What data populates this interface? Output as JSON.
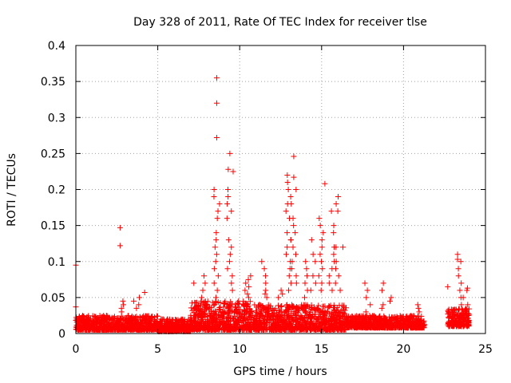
{
  "chart_data": {
    "type": "scatter",
    "title": "Day 328 of 2011, Rate Of TEC Index for receiver tlse",
    "xlabel": "GPS time / hours",
    "ylabel": "ROTI / TECUs",
    "xlim": [
      0,
      25
    ],
    "ylim": [
      0,
      0.4
    ],
    "x_ticks": [
      0,
      5,
      10,
      15,
      20,
      25
    ],
    "y_ticks": [
      0,
      0.05,
      0.1,
      0.15,
      0.2,
      0.25,
      0.3,
      0.35,
      0.4
    ],
    "grid": true,
    "marker": "plus",
    "marker_color": "#ff0000",
    "baseline_bands": [
      {
        "x_start": 0,
        "x_end": 5,
        "y_low": 0.005,
        "y_high": 0.025
      },
      {
        "x_start": 5,
        "x_end": 7,
        "y_low": 0.003,
        "y_high": 0.02
      },
      {
        "x_start": 7,
        "x_end": 11,
        "y_low": 0.005,
        "y_high": 0.045
      },
      {
        "x_start": 11,
        "x_end": 16.5,
        "y_low": 0.005,
        "y_high": 0.04
      },
      {
        "x_start": 16.5,
        "x_end": 21.3,
        "y_low": 0.008,
        "y_high": 0.025
      },
      {
        "x_start": 22.7,
        "x_end": 24,
        "y_low": 0.01,
        "y_high": 0.035
      }
    ],
    "spikes": [
      {
        "x": 8.6,
        "y_values": [
          0.2,
          0.19,
          0.18,
          0.17,
          0.16,
          0.14,
          0.13,
          0.12,
          0.11,
          0.1,
          0.09,
          0.08,
          0.07,
          0.06,
          0.05
        ]
      },
      {
        "x": 9.4,
        "y_values": [
          0.2,
          0.19,
          0.18,
          0.17,
          0.16,
          0.13,
          0.12,
          0.11,
          0.1,
          0.09,
          0.08,
          0.07,
          0.06
        ]
      },
      {
        "x": 13.0,
        "y_values": [
          0.22,
          0.21,
          0.2,
          0.19,
          0.18,
          0.17,
          0.16,
          0.14,
          0.13,
          0.12,
          0.11,
          0.1,
          0.09,
          0.08,
          0.07,
          0.06
        ]
      },
      {
        "x": 13.3,
        "y_values": [
          0.2,
          0.18,
          0.16,
          0.15,
          0.14,
          0.13,
          0.12,
          0.11,
          0.1,
          0.09,
          0.08,
          0.07
        ]
      },
      {
        "x": 15.0,
        "y_values": [
          0.16,
          0.15,
          0.14,
          0.13,
          0.12,
          0.11,
          0.1,
          0.09,
          0.08,
          0.07,
          0.06
        ]
      },
      {
        "x": 15.6,
        "y_values": [
          0.17,
          0.15,
          0.14,
          0.12,
          0.11,
          0.1,
          0.09,
          0.08,
          0.07,
          0.06
        ]
      },
      {
        "x": 16.0,
        "y_values": [
          0.19,
          0.18,
          0.17,
          0.12,
          0.1,
          0.09,
          0.08,
          0.07,
          0.06
        ]
      },
      {
        "x": 10.5,
        "y_values": [
          0.08,
          0.075,
          0.07,
          0.065,
          0.06,
          0.055,
          0.05
        ]
      },
      {
        "x": 11.5,
        "y_values": [
          0.1,
          0.09,
          0.08,
          0.07,
          0.06,
          0.055,
          0.05
        ]
      },
      {
        "x": 12.5,
        "y_values": [
          0.06,
          0.055,
          0.05
        ]
      },
      {
        "x": 14.0,
        "y_values": [
          0.1,
          0.09,
          0.08,
          0.07,
          0.06,
          0.05
        ]
      },
      {
        "x": 14.5,
        "y_values": [
          0.13,
          0.11,
          0.1,
          0.08,
          0.07,
          0.06
        ]
      },
      {
        "x": 2.9,
        "y_values": [
          0.045,
          0.04,
          0.035,
          0.03
        ]
      },
      {
        "x": 3.7,
        "y_values": [
          0.05,
          0.045,
          0.04,
          0.035
        ]
      },
      {
        "x": 7.8,
        "y_values": [
          0.08,
          0.07,
          0.06,
          0.05,
          0.045
        ]
      },
      {
        "x": 17.8,
        "y_values": [
          0.07,
          0.06,
          0.05,
          0.04,
          0.03
        ]
      },
      {
        "x": 18.7,
        "y_values": [
          0.07,
          0.06,
          0.04,
          0.035
        ]
      },
      {
        "x": 19.3,
        "y_values": [
          0.05,
          0.045
        ]
      },
      {
        "x": 21.0,
        "y_values": [
          0.04,
          0.035,
          0.03
        ]
      },
      {
        "x": 23.4,
        "y_values": [
          0.1,
          0.09,
          0.08,
          0.07,
          0.06,
          0.05,
          0.04
        ]
      },
      {
        "x": 23.8,
        "y_values": [
          0.06,
          0.05,
          0.04,
          0.03
        ]
      }
    ],
    "outliers": [
      {
        "x": 0.0,
        "y": 0.095
      },
      {
        "x": 0.0,
        "y": 0.037
      },
      {
        "x": 2.7,
        "y": 0.147
      },
      {
        "x": 2.7,
        "y": 0.122
      },
      {
        "x": 4.2,
        "y": 0.057
      },
      {
        "x": 7.2,
        "y": 0.07
      },
      {
        "x": 8.6,
        "y": 0.355
      },
      {
        "x": 8.6,
        "y": 0.32
      },
      {
        "x": 8.6,
        "y": 0.272
      },
      {
        "x": 9.4,
        "y": 0.25
      },
      {
        "x": 9.3,
        "y": 0.228
      },
      {
        "x": 9.6,
        "y": 0.225
      },
      {
        "x": 13.3,
        "y": 0.246
      },
      {
        "x": 13.3,
        "y": 0.217
      },
      {
        "x": 15.2,
        "y": 0.208
      },
      {
        "x": 16.3,
        "y": 0.12
      },
      {
        "x": 22.7,
        "y": 0.065
      },
      {
        "x": 23.3,
        "y": 0.11
      },
      {
        "x": 23.3,
        "y": 0.103
      },
      {
        "x": 23.9,
        "y": 0.063
      }
    ]
  }
}
